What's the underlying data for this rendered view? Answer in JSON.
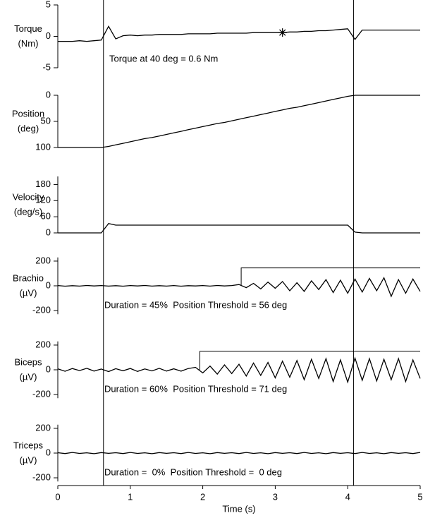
{
  "chart_data": {
    "type": "line",
    "xlabel": "Time (s)",
    "xlim": [
      0,
      5
    ],
    "xticks": [
      0,
      1,
      2,
      3,
      4,
      5
    ],
    "vlines": [
      0.63,
      4.08
    ],
    "x": [
      0,
      0.1,
      0.2,
      0.3,
      0.4,
      0.5,
      0.6,
      0.7,
      0.8,
      0.9,
      1,
      1.1,
      1.2,
      1.3,
      1.4,
      1.5,
      1.6,
      1.7,
      1.8,
      1.9,
      2,
      2.1,
      2.2,
      2.3,
      2.4,
      2.5,
      2.6,
      2.7,
      2.8,
      2.9,
      3,
      3.1,
      3.2,
      3.3,
      3.4,
      3.5,
      3.6,
      3.7,
      3.8,
      3.9,
      4,
      4.1,
      4.2,
      4.3,
      4.4,
      4.5,
      4.6,
      4.7,
      4.8,
      4.9,
      5
    ],
    "panels": [
      {
        "ylabel": [
          "Torque",
          "(Nm)"
        ],
        "ylim": [
          -5,
          5
        ],
        "yticks": [
          -5,
          0,
          5
        ],
        "annotation": "Torque at 40 deg = 0.6 Nm",
        "marker": {
          "x": 3.1,
          "y": 0.6
        },
        "color": "#000000",
        "values": [
          -0.8,
          -0.8,
          -0.8,
          -0.7,
          -0.8,
          -0.7,
          -0.6,
          1.6,
          -0.4,
          0.1,
          0.2,
          0.1,
          0.2,
          0.2,
          0.3,
          0.3,
          0.3,
          0.3,
          0.4,
          0.4,
          0.4,
          0.4,
          0.5,
          0.5,
          0.5,
          0.5,
          0.5,
          0.6,
          0.6,
          0.6,
          0.6,
          0.6,
          0.7,
          0.7,
          0.8,
          0.8,
          0.9,
          0.9,
          1.0,
          1.1,
          1.2,
          -0.5,
          1.0,
          1.0,
          1.0,
          1.0,
          1.0,
          1.0,
          1.0,
          1.0,
          1.0
        ]
      },
      {
        "ylabel": [
          "Position",
          "(deg)"
        ],
        "ylim": [
          0,
          100
        ],
        "inverted": true,
        "yticks": [
          0,
          50,
          100
        ],
        "color": "#000000",
        "values": [
          100,
          100,
          100,
          100,
          100,
          100,
          100,
          98,
          95,
          92,
          89,
          86,
          83,
          81,
          78,
          75,
          72,
          69,
          66,
          63,
          60,
          57,
          54,
          52,
          49,
          46,
          43,
          40,
          37,
          34,
          31,
          28,
          25,
          23,
          20,
          17,
          14,
          11,
          8,
          5,
          2,
          0,
          0,
          0,
          0,
          0,
          0,
          0,
          0,
          0,
          0
        ]
      },
      {
        "ylabel": [
          "Velocity",
          "(deg/s)"
        ],
        "ylim": [
          0,
          210
        ],
        "yticks": [
          0,
          60,
          120,
          180
        ],
        "color": "#000000",
        "values": [
          0,
          0,
          0,
          0,
          0,
          0,
          0,
          35,
          29,
          29,
          29,
          29,
          29,
          29,
          29,
          29,
          29,
          29,
          29,
          29,
          29,
          29,
          29,
          29,
          29,
          29,
          29,
          29,
          29,
          29,
          29,
          29,
          29,
          29,
          29,
          29,
          29,
          29,
          29,
          29,
          29,
          3,
          0,
          0,
          0,
          0,
          0,
          0,
          0,
          0,
          0
        ]
      },
      {
        "ylabel": [
          "Brachio",
          "(µV)"
        ],
        "ylim": [
          -230,
          230
        ],
        "yticks": [
          -200,
          0,
          200
        ],
        "annotation": "Duration = 45%  Position Threshold = 56 deg",
        "threshold": {
          "x": 2.53,
          "y": 145
        },
        "color": "#000000",
        "values": [
          2,
          -3,
          1,
          -2,
          3,
          -1,
          2,
          -2,
          1,
          -3,
          2,
          -1,
          3,
          -2,
          1,
          -2,
          2,
          -3,
          1,
          -1,
          2,
          -2,
          3,
          -1,
          2,
          10,
          -15,
          20,
          -25,
          30,
          -20,
          35,
          -40,
          25,
          -45,
          40,
          -30,
          50,
          -55,
          45,
          -60,
          55,
          -50,
          60,
          -40,
          65,
          -85,
          50,
          -60,
          55,
          -45
        ]
      },
      {
        "ylabel": [
          "Biceps",
          "(µV)"
        ],
        "ylim": [
          -230,
          230
        ],
        "yticks": [
          -200,
          0,
          200
        ],
        "annotation": "Duration = 60%  Position Threshold = 71 deg",
        "threshold": {
          "x": 1.96,
          "y": 150
        },
        "color": "#000000",
        "values": [
          8,
          -12,
          10,
          -6,
          12,
          -10,
          6,
          -14,
          9,
          -8,
          11,
          -13,
          7,
          -9,
          12,
          -10,
          8,
          -11,
          10,
          20,
          -25,
          30,
          -35,
          40,
          -30,
          45,
          -50,
          55,
          -45,
          60,
          -65,
          70,
          -60,
          75,
          -80,
          85,
          -70,
          90,
          -95,
          80,
          -100,
          95,
          -85,
          90,
          -90,
          85,
          -80,
          90,
          -95,
          80,
          -70
        ]
      },
      {
        "ylabel": [
          "Triceps",
          "(µV)"
        ],
        "ylim": [
          -230,
          230
        ],
        "yticks": [
          -200,
          0,
          200
        ],
        "annotation": "Duration =  0%  Position Threshold =  0 deg",
        "color": "#000000",
        "values": [
          3,
          -4,
          5,
          -3,
          2,
          -5,
          4,
          -2,
          3,
          -4,
          5,
          -3,
          2,
          -5,
          4,
          -2,
          3,
          -4,
          5,
          -3,
          2,
          -5,
          4,
          -2,
          3,
          -4,
          5,
          -3,
          2,
          -5,
          4,
          -2,
          3,
          -4,
          5,
          -3,
          2,
          -5,
          4,
          -2,
          3,
          -4,
          5,
          -3,
          2,
          -5,
          4,
          -2,
          3,
          -4,
          5
        ]
      }
    ]
  }
}
